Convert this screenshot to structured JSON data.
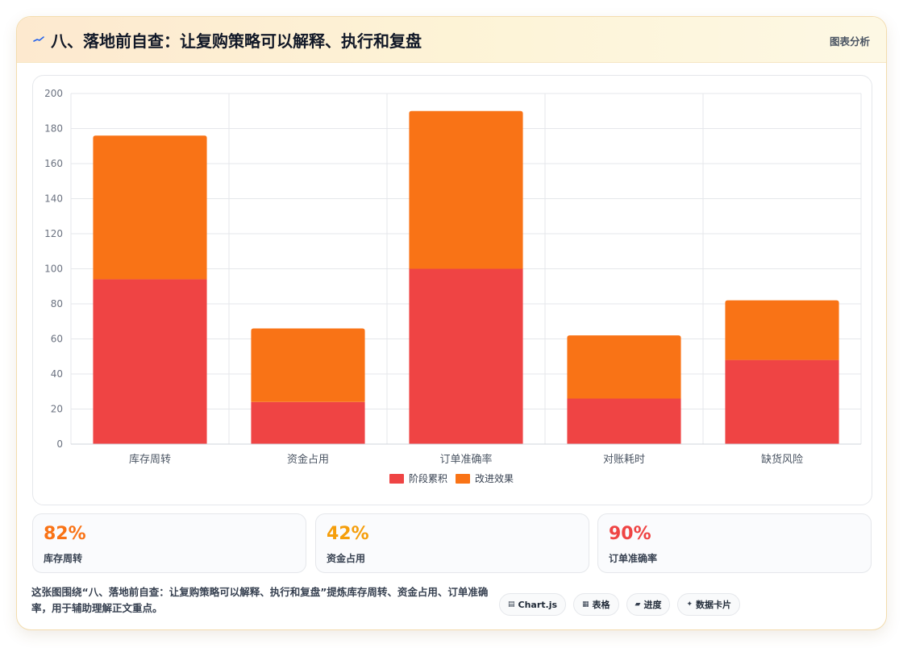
{
  "header": {
    "title": "八、落地前自查：让复购策略可以解释、执行和复盘",
    "link": "图表分析"
  },
  "chart_data": {
    "type": "bar",
    "stacked": true,
    "categories": [
      "库存周转",
      "资金占用",
      "订单准确率",
      "对账耗时",
      "缺货风险"
    ],
    "series": [
      {
        "name": "阶段累积",
        "values": [
          94,
          24,
          100,
          26,
          48
        ],
        "color": "#ef4444"
      },
      {
        "name": "改进效果",
        "values": [
          82,
          42,
          90,
          36,
          34
        ],
        "color": "#f97316"
      }
    ],
    "ylim": [
      0,
      200
    ],
    "yticks": [
      0,
      20,
      40,
      60,
      80,
      100,
      120,
      140,
      160,
      180,
      200
    ],
    "grid": true,
    "legend": "bottom"
  },
  "stats": [
    {
      "value": "82%",
      "label": "库存周转",
      "color": "#f97316"
    },
    {
      "value": "42%",
      "label": "资金占用",
      "color": "#f59e0b"
    },
    {
      "value": "90%",
      "label": "订单准确率",
      "color": "#ef4444"
    }
  ],
  "footer": {
    "note": "这张图围绕“八、落地前自查：让复购策略可以解释、执行和复盘”提炼库存周转、资金占用、订单准确率，用于辅助理解正文重点。",
    "tags": [
      {
        "icon": "chart-icon",
        "glyph": "▤",
        "label": "Chart.js"
      },
      {
        "icon": "table-icon",
        "glyph": "▦",
        "label": "表格"
      },
      {
        "icon": "progress-icon",
        "glyph": "▰",
        "label": "进度"
      },
      {
        "icon": "data-card-icon",
        "glyph": "✦",
        "label": "数据卡片"
      }
    ]
  }
}
